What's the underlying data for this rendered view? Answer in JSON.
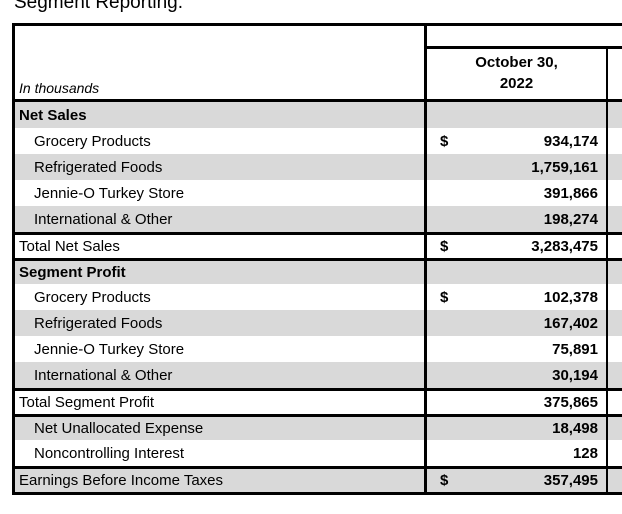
{
  "title": "Segment Reporting.",
  "table": {
    "unit_label": "In thousands",
    "period": {
      "line1": "October 30,",
      "line2": "2022"
    },
    "colors": {
      "row_gray": "#d9d9d9",
      "row_white": "#ffffff",
      "border": "#000000",
      "text": "#000000"
    },
    "rows": [
      {
        "label": "Net Sales",
        "dollar": "",
        "value": "",
        "bg": "gray",
        "bold": true,
        "indent": false,
        "border_top": false
      },
      {
        "label": "Grocery Products",
        "dollar": "$",
        "value": "934,174",
        "bg": "white",
        "bold": false,
        "indent": true,
        "border_top": false
      },
      {
        "label": "Refrigerated Foods",
        "dollar": "",
        "value": "1,759,161",
        "bg": "gray",
        "bold": false,
        "indent": true,
        "border_top": false
      },
      {
        "label": "Jennie-O Turkey Store",
        "dollar": "",
        "value": "391,866",
        "bg": "white",
        "bold": false,
        "indent": true,
        "border_top": false
      },
      {
        "label": "International & Other",
        "dollar": "",
        "value": "198,274",
        "bg": "gray",
        "bold": false,
        "indent": true,
        "border_top": false
      },
      {
        "label": "Total Net Sales",
        "dollar": "$",
        "value": "3,283,475",
        "bg": "white",
        "bold": false,
        "indent": false,
        "border_top": true
      },
      {
        "label": "Segment Profit",
        "dollar": "",
        "value": "",
        "bg": "gray",
        "bold": true,
        "indent": false,
        "border_top": true
      },
      {
        "label": "Grocery Products",
        "dollar": "$",
        "value": "102,378",
        "bg": "white",
        "bold": false,
        "indent": true,
        "border_top": false
      },
      {
        "label": "Refrigerated Foods",
        "dollar": "",
        "value": "167,402",
        "bg": "gray",
        "bold": false,
        "indent": true,
        "border_top": false
      },
      {
        "label": "Jennie-O Turkey Store",
        "dollar": "",
        "value": "75,891",
        "bg": "white",
        "bold": false,
        "indent": true,
        "border_top": false
      },
      {
        "label": "International & Other",
        "dollar": "",
        "value": "30,194",
        "bg": "gray",
        "bold": false,
        "indent": true,
        "border_top": false
      },
      {
        "label": "Total Segment Profit",
        "dollar": "",
        "value": "375,865",
        "bg": "white",
        "bold": false,
        "indent": false,
        "border_top": true
      },
      {
        "label": "Net Unallocated Expense",
        "dollar": "",
        "value": "18,498",
        "bg": "gray",
        "bold": false,
        "indent": true,
        "border_top": true
      },
      {
        "label": "Noncontrolling Interest",
        "dollar": "",
        "value": "128",
        "bg": "white",
        "bold": false,
        "indent": true,
        "border_top": false
      },
      {
        "label": "Earnings Before Income Taxes",
        "dollar": "$",
        "value": "357,495",
        "bg": "gray",
        "bold": false,
        "indent": false,
        "border_top": true
      }
    ]
  }
}
